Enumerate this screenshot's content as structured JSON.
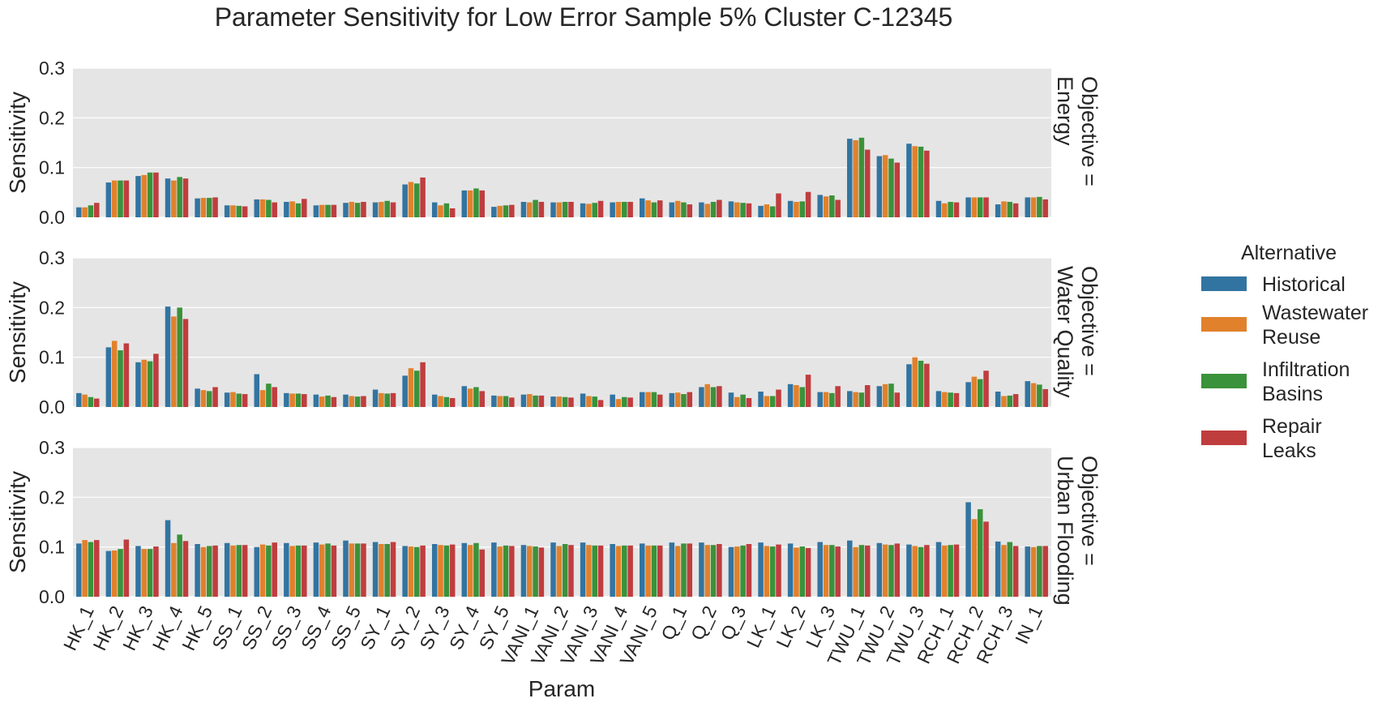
{
  "chart_data": {
    "type": "bar",
    "title": "Parameter Sensitivity for Low Error Sample 5% Cluster C-12345",
    "xlabel": "Param",
    "ylabel": "Sensitivity",
    "ylim": [
      0,
      0.3
    ],
    "yticks": [
      "0.0",
      "0.1",
      "0.2",
      "0.3"
    ],
    "grid": true,
    "legend": {
      "title": "Alternative",
      "position": "right"
    },
    "categories": [
      "HK_1",
      "HK_2",
      "HK_3",
      "HK_4",
      "HK_5",
      "SS_1",
      "SS_2",
      "SS_3",
      "SS_4",
      "SS_5",
      "SY_1",
      "SY_2",
      "SY_3",
      "SY_4",
      "SY_5",
      "VANI_1",
      "VANI_2",
      "VANI_3",
      "VANI_4",
      "VANI_5",
      "Q_1",
      "Q_2",
      "Q_3",
      "LK_1",
      "LK_2",
      "LK_3",
      "TWU_1",
      "TWU_2",
      "TWU_3",
      "RCH_1",
      "RCH_2",
      "RCH_3",
      "IN_1"
    ],
    "series_meta": [
      {
        "name": "Historical",
        "label_lines": [
          "Historical"
        ],
        "color": "#3274a1"
      },
      {
        "name": "Wastewater Reuse",
        "label_lines": [
          "Wastewater",
          "Reuse"
        ],
        "color": "#e1812c"
      },
      {
        "name": "Infiltration Basins",
        "label_lines": [
          "Infiltration",
          "Basins"
        ],
        "color": "#3a923a"
      },
      {
        "name": "Repair Leaks",
        "label_lines": [
          "Repair",
          "Leaks"
        ],
        "color": "#c03d3e"
      }
    ],
    "panels": [
      {
        "facet_label_lines": [
          "Objective =",
          "Energy"
        ],
        "series": [
          {
            "name": "Historical",
            "values": [
              0.02,
              0.07,
              0.083,
              0.078,
              0.038,
              0.024,
              0.036,
              0.031,
              0.024,
              0.029,
              0.03,
              0.066,
              0.03,
              0.054,
              0.021,
              0.031,
              0.03,
              0.028,
              0.03,
              0.038,
              0.03,
              0.03,
              0.032,
              0.023,
              0.033,
              0.045,
              0.158,
              0.123,
              0.148,
              0.033,
              0.04,
              0.026,
              0.04
            ]
          },
          {
            "name": "Wastewater Reuse",
            "values": [
              0.02,
              0.074,
              0.085,
              0.074,
              0.039,
              0.024,
              0.036,
              0.032,
              0.025,
              0.031,
              0.031,
              0.071,
              0.024,
              0.054,
              0.023,
              0.03,
              0.03,
              0.027,
              0.031,
              0.034,
              0.033,
              0.027,
              0.03,
              0.026,
              0.031,
              0.042,
              0.155,
              0.125,
              0.143,
              0.028,
              0.04,
              0.032,
              0.04
            ]
          },
          {
            "name": "Infiltration Basins",
            "values": [
              0.024,
              0.074,
              0.09,
              0.081,
              0.039,
              0.023,
              0.035,
              0.028,
              0.025,
              0.029,
              0.033,
              0.068,
              0.028,
              0.058,
              0.024,
              0.035,
              0.031,
              0.029,
              0.031,
              0.03,
              0.03,
              0.031,
              0.029,
              0.022,
              0.032,
              0.044,
              0.16,
              0.118,
              0.142,
              0.031,
              0.04,
              0.031,
              0.041
            ]
          },
          {
            "name": "Repair Leaks",
            "values": [
              0.029,
              0.074,
              0.09,
              0.078,
              0.04,
              0.022,
              0.03,
              0.037,
              0.025,
              0.031,
              0.03,
              0.08,
              0.018,
              0.054,
              0.025,
              0.031,
              0.031,
              0.033,
              0.031,
              0.034,
              0.026,
              0.035,
              0.028,
              0.048,
              0.051,
              0.035,
              0.136,
              0.11,
              0.134,
              0.03,
              0.04,
              0.028,
              0.036
            ]
          }
        ]
      },
      {
        "facet_label_lines": [
          "Objective =",
          "Water Quality"
        ],
        "series": [
          {
            "name": "Historical",
            "values": [
              0.028,
              0.12,
              0.09,
              0.202,
              0.037,
              0.029,
              0.066,
              0.028,
              0.025,
              0.025,
              0.035,
              0.063,
              0.025,
              0.042,
              0.023,
              0.025,
              0.021,
              0.027,
              0.025,
              0.03,
              0.028,
              0.04,
              0.029,
              0.031,
              0.046,
              0.03,
              0.032,
              0.042,
              0.086,
              0.032,
              0.05,
              0.031,
              0.052
            ]
          },
          {
            "name": "Wastewater Reuse",
            "values": [
              0.025,
              0.133,
              0.095,
              0.182,
              0.034,
              0.03,
              0.034,
              0.027,
              0.021,
              0.022,
              0.028,
              0.078,
              0.022,
              0.037,
              0.022,
              0.026,
              0.021,
              0.022,
              0.016,
              0.03,
              0.029,
              0.046,
              0.02,
              0.022,
              0.044,
              0.03,
              0.03,
              0.046,
              0.1,
              0.03,
              0.061,
              0.022,
              0.048
            ]
          },
          {
            "name": "Infiltration Basins",
            "values": [
              0.02,
              0.114,
              0.092,
              0.2,
              0.032,
              0.027,
              0.047,
              0.027,
              0.023,
              0.021,
              0.027,
              0.073,
              0.02,
              0.04,
              0.022,
              0.023,
              0.02,
              0.021,
              0.02,
              0.03,
              0.026,
              0.04,
              0.025,
              0.022,
              0.04,
              0.028,
              0.029,
              0.047,
              0.093,
              0.029,
              0.056,
              0.023,
              0.045
            ]
          },
          {
            "name": "Repair Leaks",
            "values": [
              0.017,
              0.128,
              0.107,
              0.177,
              0.04,
              0.026,
              0.04,
              0.026,
              0.02,
              0.022,
              0.028,
              0.09,
              0.018,
              0.032,
              0.019,
              0.023,
              0.019,
              0.014,
              0.019,
              0.025,
              0.03,
              0.042,
              0.018,
              0.035,
              0.065,
              0.042,
              0.044,
              0.029,
              0.087,
              0.028,
              0.073,
              0.026,
              0.036
            ]
          }
        ]
      },
      {
        "facet_label_lines": [
          "Objective =",
          "Urban Flooding"
        ],
        "series": [
          {
            "name": "Historical",
            "values": [
              0.107,
              0.092,
              0.102,
              0.154,
              0.106,
              0.108,
              0.1,
              0.108,
              0.109,
              0.113,
              0.11,
              0.102,
              0.106,
              0.108,
              0.109,
              0.104,
              0.109,
              0.109,
              0.106,
              0.107,
              0.109,
              0.109,
              0.1,
              0.109,
              0.107,
              0.11,
              0.113,
              0.108,
              0.105,
              0.11,
              0.19,
              0.111,
              0.101
            ]
          },
          {
            "name": "Wastewater Reuse",
            "values": [
              0.114,
              0.093,
              0.096,
              0.108,
              0.1,
              0.103,
              0.105,
              0.102,
              0.105,
              0.107,
              0.106,
              0.101,
              0.104,
              0.104,
              0.101,
              0.102,
              0.102,
              0.104,
              0.102,
              0.103,
              0.102,
              0.104,
              0.101,
              0.102,
              0.099,
              0.104,
              0.1,
              0.105,
              0.102,
              0.103,
              0.156,
              0.104,
              0.1
            ]
          },
          {
            "name": "Infiltration Basins",
            "values": [
              0.11,
              0.096,
              0.096,
              0.125,
              0.102,
              0.104,
              0.103,
              0.103,
              0.107,
              0.107,
              0.106,
              0.1,
              0.103,
              0.108,
              0.103,
              0.101,
              0.106,
              0.103,
              0.103,
              0.103,
              0.107,
              0.104,
              0.103,
              0.101,
              0.101,
              0.104,
              0.104,
              0.104,
              0.1,
              0.104,
              0.176,
              0.11,
              0.102
            ]
          },
          {
            "name": "Repair Leaks",
            "values": [
              0.114,
              0.115,
              0.101,
              0.112,
              0.103,
              0.104,
              0.109,
              0.103,
              0.103,
              0.107,
              0.11,
              0.103,
              0.105,
              0.095,
              0.102,
              0.099,
              0.104,
              0.103,
              0.103,
              0.103,
              0.107,
              0.106,
              0.106,
              0.105,
              0.098,
              0.101,
              0.103,
              0.107,
              0.104,
              0.105,
              0.151,
              0.102,
              0.102
            ]
          }
        ]
      }
    ]
  }
}
